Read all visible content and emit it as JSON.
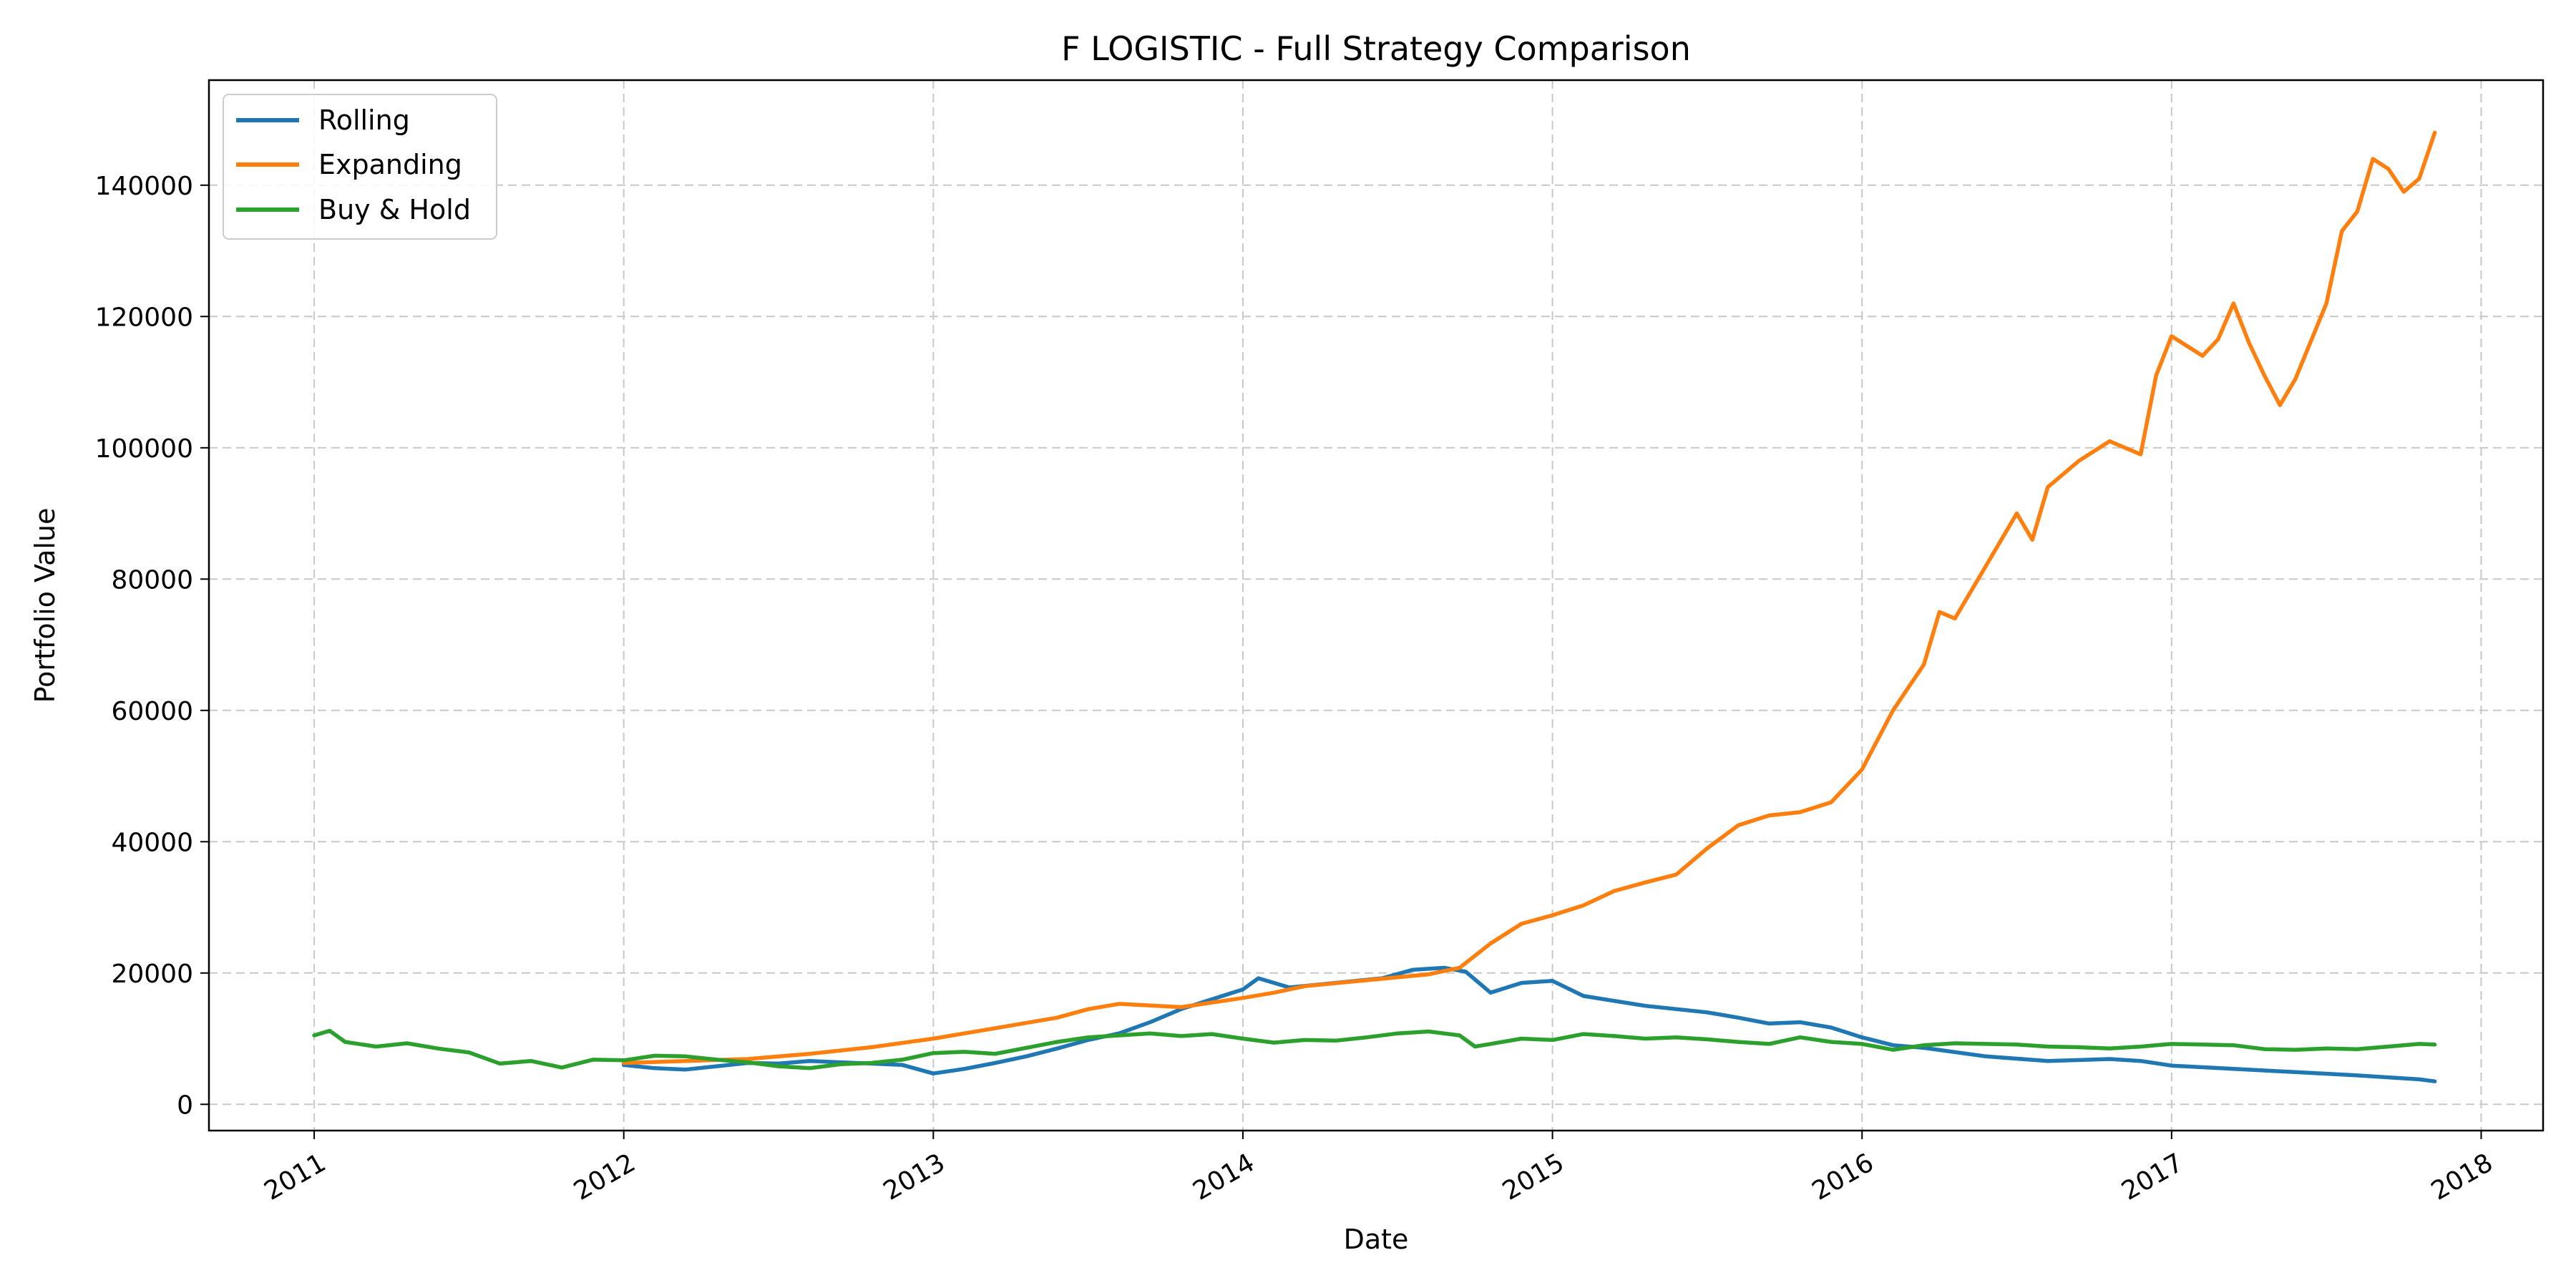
{
  "chart_data": {
    "type": "line",
    "title": "F LOGISTIC - Full Strategy Comparison",
    "xlabel": "Date",
    "ylabel": "Portfolio Value",
    "xlim": [
      2010.66,
      2018.2
    ],
    "ylim": [
      -4000,
      156000
    ],
    "x_ticks": [
      2011,
      2012,
      2013,
      2014,
      2015,
      2016,
      2017,
      2018
    ],
    "x_tick_labels": [
      "2011",
      "2012",
      "2013",
      "2014",
      "2015",
      "2016",
      "2017",
      "2018"
    ],
    "y_ticks": [
      0,
      20000,
      40000,
      60000,
      80000,
      100000,
      120000,
      140000
    ],
    "y_tick_labels": [
      "0",
      "20000",
      "40000",
      "60000",
      "80000",
      "100000",
      "120000",
      "140000"
    ],
    "grid": true,
    "legend_position": "top-left",
    "series": [
      {
        "name": "Rolling",
        "color": "#1f77b4",
        "points": [
          [
            2012.0,
            6000
          ],
          [
            2012.1,
            5500
          ],
          [
            2012.2,
            5300
          ],
          [
            2012.3,
            5800
          ],
          [
            2012.4,
            6300
          ],
          [
            2012.5,
            6200
          ],
          [
            2012.6,
            6600
          ],
          [
            2012.7,
            6400
          ],
          [
            2012.8,
            6200
          ],
          [
            2012.9,
            6000
          ],
          [
            2013.0,
            4700
          ],
          [
            2013.1,
            5400
          ],
          [
            2013.2,
            6300
          ],
          [
            2013.3,
            7300
          ],
          [
            2013.4,
            8500
          ],
          [
            2013.5,
            9800
          ],
          [
            2013.6,
            10800
          ],
          [
            2013.7,
            12500
          ],
          [
            2013.8,
            14500
          ],
          [
            2013.9,
            16000
          ],
          [
            2014.0,
            17500
          ],
          [
            2014.05,
            19200
          ],
          [
            2014.15,
            17800
          ],
          [
            2014.3,
            18500
          ],
          [
            2014.45,
            19200
          ],
          [
            2014.55,
            20500
          ],
          [
            2014.65,
            20800
          ],
          [
            2014.72,
            20200
          ],
          [
            2014.8,
            17000
          ],
          [
            2014.9,
            18500
          ],
          [
            2015.0,
            18800
          ],
          [
            2015.1,
            16500
          ],
          [
            2015.3,
            15000
          ],
          [
            2015.5,
            14000
          ],
          [
            2015.6,
            13200
          ],
          [
            2015.7,
            12300
          ],
          [
            2015.8,
            12500
          ],
          [
            2015.9,
            11700
          ],
          [
            2016.0,
            10200
          ],
          [
            2016.1,
            9000
          ],
          [
            2016.2,
            8600
          ],
          [
            2016.4,
            7300
          ],
          [
            2016.6,
            6600
          ],
          [
            2016.8,
            6900
          ],
          [
            2016.9,
            6600
          ],
          [
            2017.0,
            5900
          ],
          [
            2017.2,
            5400
          ],
          [
            2017.4,
            4900
          ],
          [
            2017.6,
            4400
          ],
          [
            2017.8,
            3800
          ],
          [
            2017.85,
            3500
          ]
        ]
      },
      {
        "name": "Expanding",
        "color": "#ff7f0e",
        "points": [
          [
            2012.0,
            6300
          ],
          [
            2012.2,
            6600
          ],
          [
            2012.4,
            6900
          ],
          [
            2012.6,
            7700
          ],
          [
            2012.8,
            8700
          ],
          [
            2013.0,
            10000
          ],
          [
            2013.2,
            11600
          ],
          [
            2013.4,
            13200
          ],
          [
            2013.5,
            14500
          ],
          [
            2013.6,
            15300
          ],
          [
            2013.8,
            14800
          ],
          [
            2014.0,
            16200
          ],
          [
            2014.1,
            17000
          ],
          [
            2014.2,
            18000
          ],
          [
            2014.4,
            18900
          ],
          [
            2014.6,
            19800
          ],
          [
            2014.7,
            20800
          ],
          [
            2014.8,
            24500
          ],
          [
            2014.9,
            27500
          ],
          [
            2015.0,
            28800
          ],
          [
            2015.1,
            30300
          ],
          [
            2015.2,
            32500
          ],
          [
            2015.3,
            33800
          ],
          [
            2015.4,
            35000
          ],
          [
            2015.5,
            39000
          ],
          [
            2015.6,
            42500
          ],
          [
            2015.7,
            44000
          ],
          [
            2015.8,
            44500
          ],
          [
            2015.9,
            46000
          ],
          [
            2016.0,
            51000
          ],
          [
            2016.1,
            60000
          ],
          [
            2016.2,
            67000
          ],
          [
            2016.25,
            75000
          ],
          [
            2016.3,
            74000
          ],
          [
            2016.4,
            82000
          ],
          [
            2016.5,
            90000
          ],
          [
            2016.55,
            86000
          ],
          [
            2016.6,
            94000
          ],
          [
            2016.7,
            98000
          ],
          [
            2016.8,
            101000
          ],
          [
            2016.9,
            99000
          ],
          [
            2016.95,
            111000
          ],
          [
            2017.0,
            117000
          ],
          [
            2017.1,
            114000
          ],
          [
            2017.15,
            116500
          ],
          [
            2017.2,
            122000
          ],
          [
            2017.25,
            116000
          ],
          [
            2017.3,
            111000
          ],
          [
            2017.35,
            106500
          ],
          [
            2017.4,
            110500
          ],
          [
            2017.5,
            122000
          ],
          [
            2017.55,
            133000
          ],
          [
            2017.6,
            136000
          ],
          [
            2017.65,
            144000
          ],
          [
            2017.7,
            142500
          ],
          [
            2017.75,
            139000
          ],
          [
            2017.8,
            141000
          ],
          [
            2017.85,
            148000
          ]
        ]
      },
      {
        "name": "Buy & Hold",
        "color": "#2ca02c",
        "points": [
          [
            2011.0,
            10500
          ],
          [
            2011.05,
            11200
          ],
          [
            2011.1,
            9500
          ],
          [
            2011.2,
            8800
          ],
          [
            2011.3,
            9300
          ],
          [
            2011.4,
            8500
          ],
          [
            2011.5,
            7900
          ],
          [
            2011.6,
            6200
          ],
          [
            2011.7,
            6600
          ],
          [
            2011.8,
            5600
          ],
          [
            2011.9,
            6800
          ],
          [
            2012.0,
            6700
          ],
          [
            2012.1,
            7400
          ],
          [
            2012.2,
            7300
          ],
          [
            2012.3,
            6800
          ],
          [
            2012.4,
            6400
          ],
          [
            2012.5,
            5800
          ],
          [
            2012.6,
            5500
          ],
          [
            2012.7,
            6100
          ],
          [
            2012.8,
            6300
          ],
          [
            2012.9,
            6800
          ],
          [
            2013.0,
            7800
          ],
          [
            2013.1,
            8000
          ],
          [
            2013.2,
            7700
          ],
          [
            2013.3,
            8600
          ],
          [
            2013.4,
            9500
          ],
          [
            2013.5,
            10200
          ],
          [
            2013.6,
            10500
          ],
          [
            2013.7,
            10800
          ],
          [
            2013.8,
            10400
          ],
          [
            2013.9,
            10700
          ],
          [
            2014.0,
            10000
          ],
          [
            2014.1,
            9400
          ],
          [
            2014.2,
            9800
          ],
          [
            2014.3,
            9700
          ],
          [
            2014.4,
            10200
          ],
          [
            2014.5,
            10800
          ],
          [
            2014.6,
            11100
          ],
          [
            2014.7,
            10500
          ],
          [
            2014.75,
            8800
          ],
          [
            2014.8,
            9200
          ],
          [
            2014.9,
            10000
          ],
          [
            2015.0,
            9800
          ],
          [
            2015.1,
            10700
          ],
          [
            2015.2,
            10400
          ],
          [
            2015.3,
            10000
          ],
          [
            2015.4,
            10200
          ],
          [
            2015.5,
            9900
          ],
          [
            2015.6,
            9500
          ],
          [
            2015.7,
            9200
          ],
          [
            2015.8,
            10200
          ],
          [
            2015.9,
            9500
          ],
          [
            2016.0,
            9200
          ],
          [
            2016.1,
            8300
          ],
          [
            2016.2,
            9000
          ],
          [
            2016.3,
            9300
          ],
          [
            2016.4,
            9200
          ],
          [
            2016.5,
            9100
          ],
          [
            2016.6,
            8800
          ],
          [
            2016.7,
            8700
          ],
          [
            2016.8,
            8500
          ],
          [
            2016.9,
            8800
          ],
          [
            2017.0,
            9200
          ],
          [
            2017.1,
            9100
          ],
          [
            2017.2,
            9000
          ],
          [
            2017.3,
            8400
          ],
          [
            2017.4,
            8300
          ],
          [
            2017.5,
            8500
          ],
          [
            2017.6,
            8400
          ],
          [
            2017.7,
            8800
          ],
          [
            2017.8,
            9200
          ],
          [
            2017.85,
            9100
          ]
        ]
      }
    ]
  }
}
